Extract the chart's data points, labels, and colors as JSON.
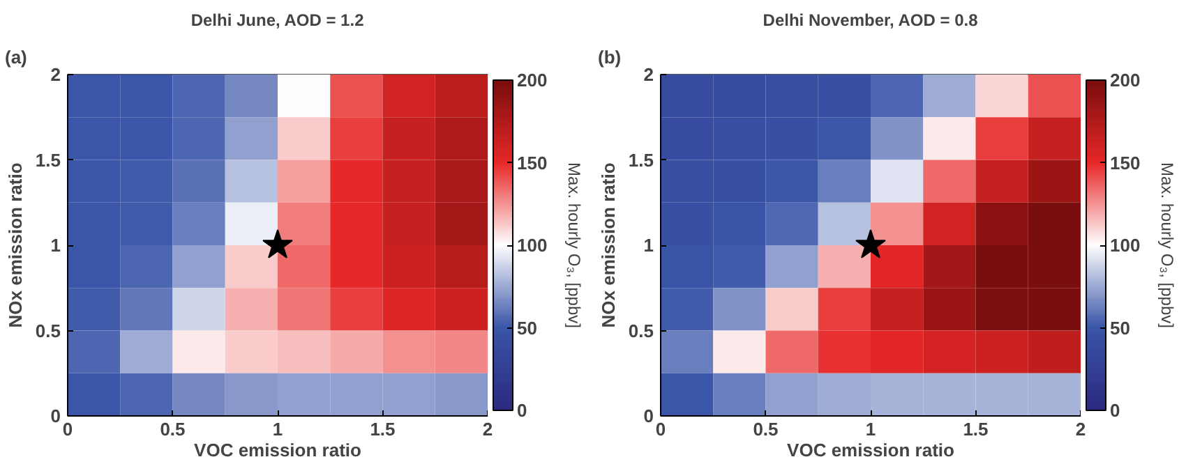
{
  "chart_data": [
    {
      "type": "heatmap",
      "title": "Delhi June, AOD = 1.2",
      "xlabel": "VOC emission ratio",
      "ylabel": "NOx emission ratio",
      "clabel": "Max. hourly O₃, [ppbv]",
      "annotations": [
        "(a)"
      ],
      "x": [
        0.125,
        0.375,
        0.625,
        0.875,
        1.125,
        1.375,
        1.625,
        1.875
      ],
      "y": [
        1.875,
        1.625,
        1.375,
        1.125,
        0.875,
        0.625,
        0.375,
        0.125
      ],
      "xlim": [
        0,
        2
      ],
      "ylim": [
        0,
        2
      ],
      "xticks": [
        0,
        0.5,
        1,
        1.5,
        2
      ],
      "yticks": [
        0,
        0.5,
        1,
        1.5,
        2
      ],
      "clim": [
        0,
        200
      ],
      "cticks": [
        0,
        50,
        100,
        150,
        200
      ],
      "marker": "star",
      "cells": [
        [
          50,
          50,
          55,
          65,
          100,
          140,
          160,
          170
        ],
        [
          50,
          50,
          55,
          72,
          112,
          145,
          165,
          175
        ],
        [
          50,
          52,
          58,
          82,
          122,
          150,
          165,
          178
        ],
        [
          50,
          52,
          62,
          95,
          130,
          150,
          165,
          180
        ],
        [
          50,
          55,
          72,
          112,
          135,
          150,
          162,
          172
        ],
        [
          52,
          60,
          88,
          118,
          132,
          145,
          155,
          162
        ],
        [
          55,
          75,
          105,
          112,
          115,
          120,
          125,
          128
        ],
        [
          50,
          55,
          65,
          70,
          72,
          72,
          72,
          70
        ]
      ],
      "series": [
        {
          "type": "scatter",
          "x": [
            1
          ],
          "values": [
            1
          ],
          "color": "#000000"
        }
      ]
    },
    {
      "type": "heatmap",
      "title": "Delhi November, AOD = 0.8",
      "xlabel": "VOC emission ratio",
      "ylabel": "NOx emission ratio",
      "clabel": "Max. hourly O₃, [ppbv]",
      "annotations": [
        "(b)"
      ],
      "x": [
        0.125,
        0.375,
        0.625,
        0.875,
        1.125,
        1.375,
        1.625,
        1.875
      ],
      "y": [
        1.875,
        1.625,
        1.375,
        1.125,
        0.875,
        0.625,
        0.375,
        0.125
      ],
      "xlim": [
        0,
        2
      ],
      "ylim": [
        0,
        2
      ],
      "xticks": [
        0,
        0.5,
        1,
        1.5,
        2
      ],
      "yticks": [
        0,
        0.5,
        1,
        1.5,
        2
      ],
      "clim": [
        0,
        200
      ],
      "cticks": [
        0,
        50,
        100,
        150,
        200
      ],
      "marker": "star",
      "cells": [
        [
          40,
          40,
          42,
          45,
          55,
          75,
          110,
          140
        ],
        [
          40,
          42,
          45,
          50,
          68,
          105,
          145,
          165
        ],
        [
          42,
          45,
          50,
          62,
          92,
          135,
          165,
          185
        ],
        [
          45,
          48,
          56,
          82,
          125,
          160,
          192,
          200
        ],
        [
          48,
          52,
          72,
          118,
          152,
          182,
          200,
          200
        ],
        [
          52,
          68,
          112,
          145,
          165,
          185,
          198,
          200
        ],
        [
          62,
          105,
          135,
          148,
          152,
          158,
          162,
          168
        ],
        [
          50,
          62,
          72,
          75,
          78,
          78,
          78,
          78
        ]
      ],
      "series": [
        {
          "type": "scatter",
          "x": [
            1
          ],
          "values": [
            1
          ],
          "color": "#000000"
        }
      ]
    }
  ]
}
